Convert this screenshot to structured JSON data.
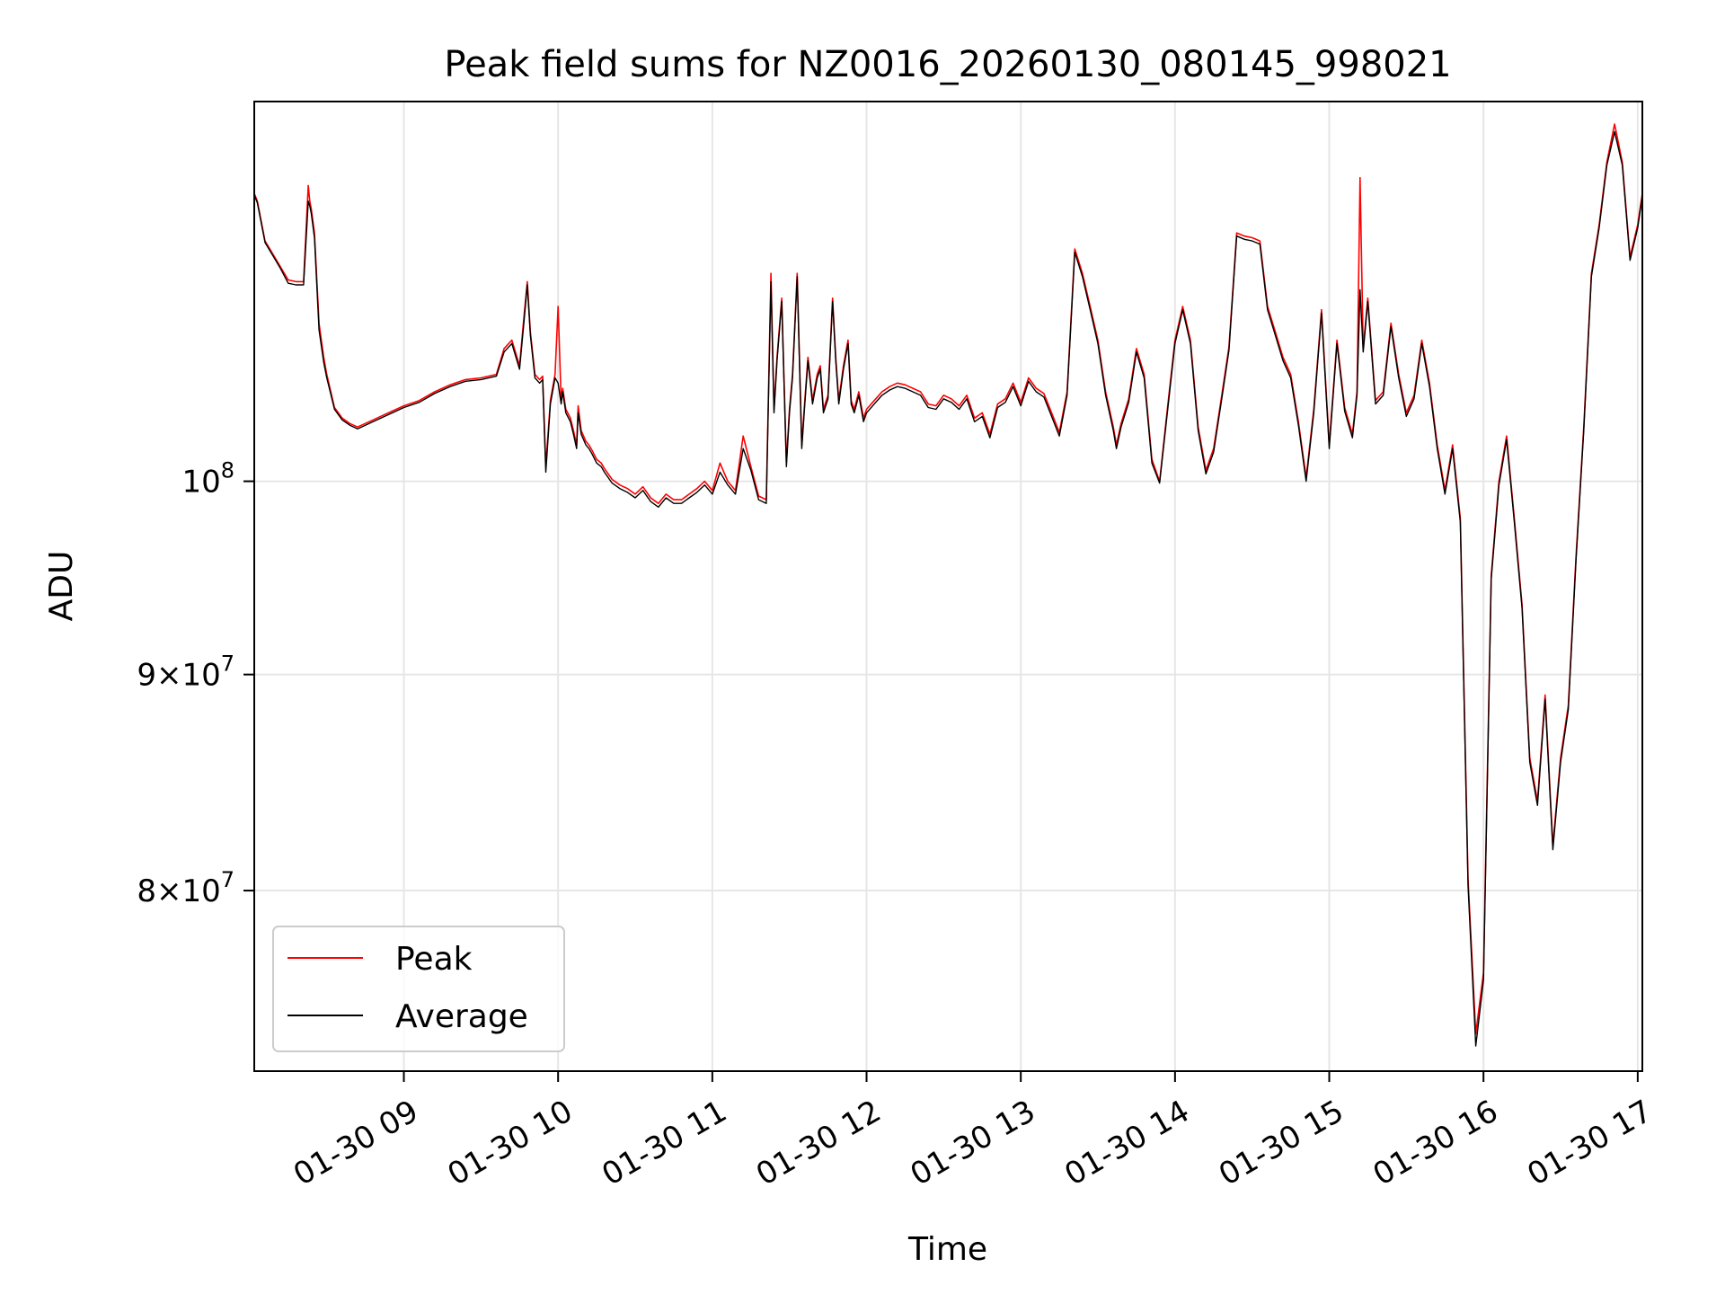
{
  "chart_data": {
    "type": "line",
    "title": "Peak field sums for NZ0016_20260130_080145_998021",
    "xlabel": "Time",
    "ylabel": "ADU",
    "yscale": "log",
    "xlim": [
      8.03,
      17.03
    ],
    "ylim": [
      72500000,
      123000000
    ],
    "x_ticks": [
      {
        "value": 9,
        "label": "01-30 09"
      },
      {
        "value": 10,
        "label": "01-30 10"
      },
      {
        "value": 11,
        "label": "01-30 11"
      },
      {
        "value": 12,
        "label": "01-30 12"
      },
      {
        "value": 13,
        "label": "01-30 13"
      },
      {
        "value": 14,
        "label": "01-30 14"
      },
      {
        "value": 15,
        "label": "01-30 15"
      },
      {
        "value": 16,
        "label": "01-30 16"
      },
      {
        "value": 17,
        "label": "01-30 17"
      }
    ],
    "y_ticks": [
      {
        "value": 100000000,
        "mantissa": "",
        "exponent": "8"
      },
      {
        "value": 90000000,
        "mantissa": "9",
        "exponent": "7"
      },
      {
        "value": 80000000,
        "mantissa": "8",
        "exponent": "7"
      }
    ],
    "grid": true,
    "legend_position": "lower-left",
    "x_unit": "hour of day",
    "series": [
      {
        "name": "Peak",
        "color": "#ff0000",
        "x": [
          8.03,
          8.05,
          8.1,
          8.15,
          8.2,
          8.25,
          8.3,
          8.35,
          8.38,
          8.39,
          8.4,
          8.42,
          8.45,
          8.48,
          8.5,
          8.55,
          8.6,
          8.65,
          8.7,
          8.8,
          8.9,
          9.0,
          9.1,
          9.2,
          9.3,
          9.4,
          9.5,
          9.6,
          9.65,
          9.7,
          9.75,
          9.78,
          9.8,
          9.82,
          9.85,
          9.88,
          9.9,
          9.92,
          9.95,
          9.98,
          10.0,
          10.02,
          10.03,
          10.05,
          10.08,
          10.1,
          10.12,
          10.13,
          10.15,
          10.18,
          10.2,
          10.22,
          10.25,
          10.28,
          10.3,
          10.35,
          10.4,
          10.45,
          10.5,
          10.55,
          10.6,
          10.65,
          10.7,
          10.75,
          10.8,
          10.85,
          10.9,
          10.95,
          11.0,
          11.05,
          11.1,
          11.15,
          11.2,
          11.25,
          11.3,
          11.35,
          11.38,
          11.4,
          11.42,
          11.45,
          11.48,
          11.5,
          11.52,
          11.55,
          11.58,
          11.6,
          11.62,
          11.65,
          11.68,
          11.7,
          11.72,
          11.75,
          11.78,
          11.8,
          11.82,
          11.85,
          11.88,
          11.9,
          11.92,
          11.95,
          11.98,
          12.0,
          12.05,
          12.1,
          12.15,
          12.2,
          12.25,
          12.3,
          12.35,
          12.4,
          12.45,
          12.5,
          12.55,
          12.6,
          12.65,
          12.7,
          12.75,
          12.8,
          12.85,
          12.9,
          12.95,
          13.0,
          13.05,
          13.1,
          13.15,
          13.2,
          13.25,
          13.3,
          13.35,
          13.4,
          13.45,
          13.5,
          13.55,
          13.6,
          13.62,
          13.65,
          13.7,
          13.75,
          13.8,
          13.85,
          13.9,
          13.95,
          14.0,
          14.05,
          14.1,
          14.15,
          14.2,
          14.25,
          14.3,
          14.35,
          14.4,
          14.45,
          14.5,
          14.55,
          14.6,
          14.65,
          14.7,
          14.75,
          14.8,
          14.85,
          14.9,
          14.95,
          15.0,
          15.05,
          15.1,
          15.15,
          15.18,
          15.2,
          15.22,
          15.25,
          15.3,
          15.35,
          15.4,
          15.45,
          15.5,
          15.55,
          15.6,
          15.65,
          15.7,
          15.75,
          15.8,
          15.85,
          15.9,
          15.95,
          16.0,
          16.05,
          16.1,
          16.15,
          16.2,
          16.25,
          16.3,
          16.35,
          16.4,
          16.45,
          16.5,
          16.55,
          16.6,
          16.65,
          16.7,
          16.75,
          16.8,
          16.85,
          16.9,
          16.95,
          17.0,
          17.03
        ],
        "values": [
          117000000,
          116500000,
          114000000,
          113200000,
          112400000,
          111600000,
          111500000,
          111500000,
          117500000,
          116500000,
          116000000,
          114500000,
          109000000,
          107000000,
          106000000,
          104100000,
          103500000,
          103200000,
          103000000,
          103400000,
          103800000,
          104200000,
          104500000,
          105000000,
          105400000,
          105700000,
          105800000,
          106000000,
          107500000,
          108000000,
          106500000,
          109500000,
          111500000,
          108500000,
          106000000,
          105700000,
          105900000,
          100800000,
          104500000,
          106000000,
          110000000,
          104500000,
          105200000,
          104000000,
          103500000,
          102800000,
          102000000,
          104200000,
          102800000,
          102200000,
          102000000,
          101700000,
          101200000,
          101000000,
          100700000,
          100100000,
          99800000,
          99600000,
          99300000,
          99700000,
          99100000,
          98800000,
          99300000,
          99000000,
          99000000,
          99300000,
          99600000,
          100000000,
          99500000,
          101000000,
          100000000,
          99500000,
          102500000,
          100800000,
          99200000,
          99000000,
          112000000,
          104000000,
          107000000,
          110500000,
          101000000,
          104000000,
          106000000,
          112000000,
          102000000,
          104500000,
          107000000,
          104500000,
          106000000,
          106500000,
          104000000,
          104800000,
          110500000,
          107000000,
          104500000,
          106500000,
          108000000,
          104500000,
          104000000,
          105000000,
          103500000,
          104000000,
          104500000,
          105000000,
          105300000,
          105500000,
          105400000,
          105200000,
          105000000,
          104300000,
          104200000,
          104800000,
          104600000,
          104200000,
          104800000,
          103500000,
          103800000,
          102600000,
          104300000,
          104600000,
          105500000,
          104400000,
          105800000,
          105200000,
          104900000,
          103800000,
          102700000,
          105000000,
          113500000,
          112000000,
          110000000,
          108000000,
          105000000,
          103000000,
          102000000,
          103200000,
          104600000,
          107500000,
          106000000,
          101200000,
          100000000,
          104000000,
          108000000,
          110000000,
          108000000,
          103000000,
          100600000,
          101800000,
          104600000,
          107600000,
          114500000,
          114300000,
          114200000,
          114000000,
          110000000,
          108500000,
          107000000,
          106000000,
          103300000,
          100200000,
          104000000,
          109800000,
          102000000,
          108000000,
          104100000,
          102600000,
          105000000,
          118000000,
          107500000,
          110500000,
          104500000,
          105000000,
          109000000,
          106000000,
          103800000,
          104800000,
          108000000,
          105500000,
          102000000,
          99500000,
          102000000,
          98000000,
          80500000,
          74000000,
          76500000,
          95000000,
          100000000,
          102500000,
          98000000,
          93500000,
          86000000,
          84000000,
          89000000,
          82000000,
          86000000,
          88500000,
          96000000,
          103000000,
          112000000,
          115000000,
          119000000,
          121500000,
          119000000,
          113000000,
          115000000,
          117000000
        ]
      },
      {
        "name": "Average",
        "color": "#000000",
        "x": [
          8.03,
          8.05,
          8.1,
          8.15,
          8.2,
          8.25,
          8.3,
          8.35,
          8.38,
          8.39,
          8.4,
          8.42,
          8.45,
          8.48,
          8.5,
          8.55,
          8.6,
          8.65,
          8.7,
          8.8,
          8.9,
          9.0,
          9.1,
          9.2,
          9.3,
          9.4,
          9.5,
          9.6,
          9.65,
          9.7,
          9.75,
          9.78,
          9.8,
          9.82,
          9.85,
          9.88,
          9.9,
          9.92,
          9.95,
          9.98,
          10.0,
          10.02,
          10.03,
          10.05,
          10.08,
          10.1,
          10.12,
          10.13,
          10.15,
          10.18,
          10.2,
          10.22,
          10.25,
          10.28,
          10.3,
          10.35,
          10.4,
          10.45,
          10.5,
          10.55,
          10.6,
          10.65,
          10.7,
          10.75,
          10.8,
          10.85,
          10.9,
          10.95,
          11.0,
          11.05,
          11.1,
          11.15,
          11.2,
          11.25,
          11.3,
          11.35,
          11.38,
          11.4,
          11.42,
          11.45,
          11.48,
          11.5,
          11.52,
          11.55,
          11.58,
          11.6,
          11.62,
          11.65,
          11.68,
          11.7,
          11.72,
          11.75,
          11.78,
          11.8,
          11.82,
          11.85,
          11.88,
          11.9,
          11.92,
          11.95,
          11.98,
          12.0,
          12.05,
          12.1,
          12.15,
          12.2,
          12.25,
          12.3,
          12.35,
          12.4,
          12.45,
          12.5,
          12.55,
          12.6,
          12.65,
          12.7,
          12.75,
          12.8,
          12.85,
          12.9,
          12.95,
          13.0,
          13.05,
          13.1,
          13.15,
          13.2,
          13.25,
          13.3,
          13.35,
          13.4,
          13.45,
          13.5,
          13.55,
          13.6,
          13.62,
          13.65,
          13.7,
          13.75,
          13.8,
          13.85,
          13.9,
          13.95,
          14.0,
          14.05,
          14.1,
          14.15,
          14.2,
          14.25,
          14.3,
          14.35,
          14.4,
          14.45,
          14.5,
          14.55,
          14.6,
          14.65,
          14.7,
          14.75,
          14.8,
          14.85,
          14.9,
          14.95,
          15.0,
          15.05,
          15.1,
          15.15,
          15.18,
          15.2,
          15.22,
          15.25,
          15.3,
          15.35,
          15.4,
          15.45,
          15.5,
          15.55,
          15.6,
          15.65,
          15.7,
          15.75,
          15.8,
          15.85,
          15.9,
          15.95,
          16.0,
          16.05,
          16.1,
          16.15,
          16.2,
          16.25,
          16.3,
          16.35,
          16.4,
          16.45,
          16.5,
          16.55,
          16.6,
          16.65,
          16.7,
          16.75,
          16.8,
          16.85,
          16.9,
          16.95,
          17.0,
          17.03
        ],
        "values": [
          116900000,
          116400000,
          113900000,
          113100000,
          112300000,
          111400000,
          111300000,
          111300000,
          116500000,
          116200000,
          115700000,
          114200000,
          108600000,
          106700000,
          105800000,
          104000000,
          103400000,
          103100000,
          102900000,
          103300000,
          103700000,
          104100000,
          104400000,
          104900000,
          105300000,
          105600000,
          105700000,
          105900000,
          107300000,
          107800000,
          106300000,
          109200000,
          111300000,
          108300000,
          105800000,
          105500000,
          105700000,
          100500000,
          104300000,
          105800000,
          105500000,
          104300000,
          105000000,
          103800000,
          103300000,
          102600000,
          101800000,
          103800000,
          102600000,
          102000000,
          101800000,
          101500000,
          101000000,
          100800000,
          100500000,
          99900000,
          99600000,
          99400000,
          99100000,
          99500000,
          98900000,
          98600000,
          99100000,
          98800000,
          98800000,
          99100000,
          99400000,
          99800000,
          99300000,
          100500000,
          99800000,
          99300000,
          101800000,
          100600000,
          99000000,
          98800000,
          111500000,
          103800000,
          106800000,
          110300000,
          100800000,
          103800000,
          105800000,
          111800000,
          101800000,
          104300000,
          106800000,
          104300000,
          105800000,
          106300000,
          103800000,
          104600000,
          110300000,
          106800000,
          104300000,
          106300000,
          107800000,
          104300000,
          103800000,
          104800000,
          103300000,
          103800000,
          104300000,
          104800000,
          105100000,
          105300000,
          105200000,
          105000000,
          104800000,
          104100000,
          104000000,
          104600000,
          104400000,
          104000000,
          104600000,
          103300000,
          103600000,
          102400000,
          104100000,
          104400000,
          105300000,
          104200000,
          105600000,
          105000000,
          104700000,
          103600000,
          102500000,
          104800000,
          113300000,
          111800000,
          109800000,
          107800000,
          104800000,
          102800000,
          101800000,
          103000000,
          104400000,
          107300000,
          105800000,
          101000000,
          99900000,
          103800000,
          107800000,
          109800000,
          107800000,
          102800000,
          100400000,
          101600000,
          104400000,
          107400000,
          114300000,
          114100000,
          114000000,
          113800000,
          109800000,
          108300000,
          106800000,
          105800000,
          103100000,
          100000000,
          103800000,
          109600000,
          101800000,
          107800000,
          103900000,
          102400000,
          104800000,
          111000000,
          107300000,
          110300000,
          104300000,
          104800000,
          108800000,
          105800000,
          103600000,
          104600000,
          107800000,
          105300000,
          101800000,
          99300000,
          101800000,
          97800000,
          80200000,
          73500000,
          76200000,
          94800000,
          99800000,
          102300000,
          97800000,
          93300000,
          85800000,
          83800000,
          88800000,
          81800000,
          85800000,
          88300000,
          95800000,
          102800000,
          111800000,
          114800000,
          118800000,
          121000000,
          118800000,
          112800000,
          114800000,
          116800000
        ]
      }
    ]
  }
}
